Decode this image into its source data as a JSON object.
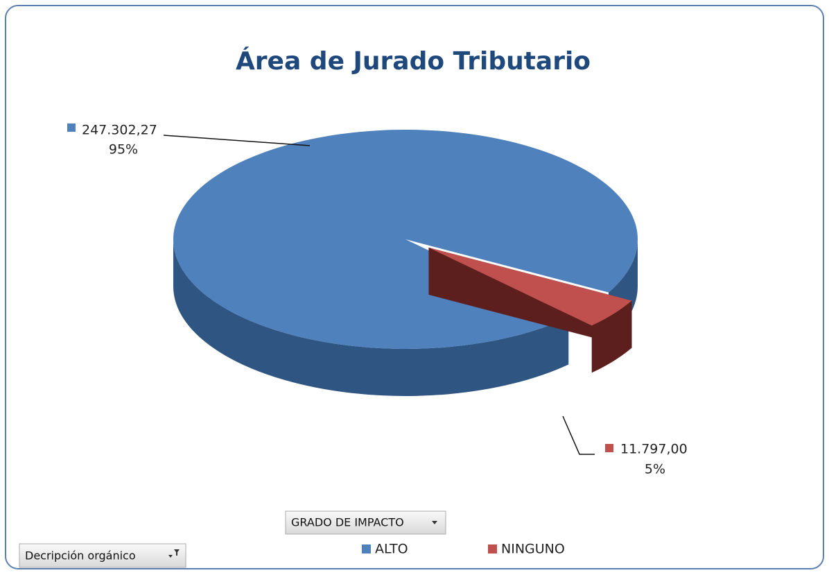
{
  "chart_data": {
    "type": "pie",
    "title": "Área de Jurado Tributario",
    "categories": [
      "ALTO",
      "NINGUNO"
    ],
    "values": [
      247302.27,
      11797.0
    ],
    "value_labels": [
      "247.302,27",
      "11.797,00"
    ],
    "percents": [
      95,
      5
    ],
    "percent_labels": [
      "95%",
      "5%"
    ],
    "colors": [
      "#4f81bd",
      "#c0504d"
    ],
    "side_colors": [
      "#2f5582",
      "#5c1f1d"
    ],
    "legend": "bottom",
    "field_buttons": [
      "GRADO DE IMPACTO",
      "Decripción orgánico"
    ]
  }
}
